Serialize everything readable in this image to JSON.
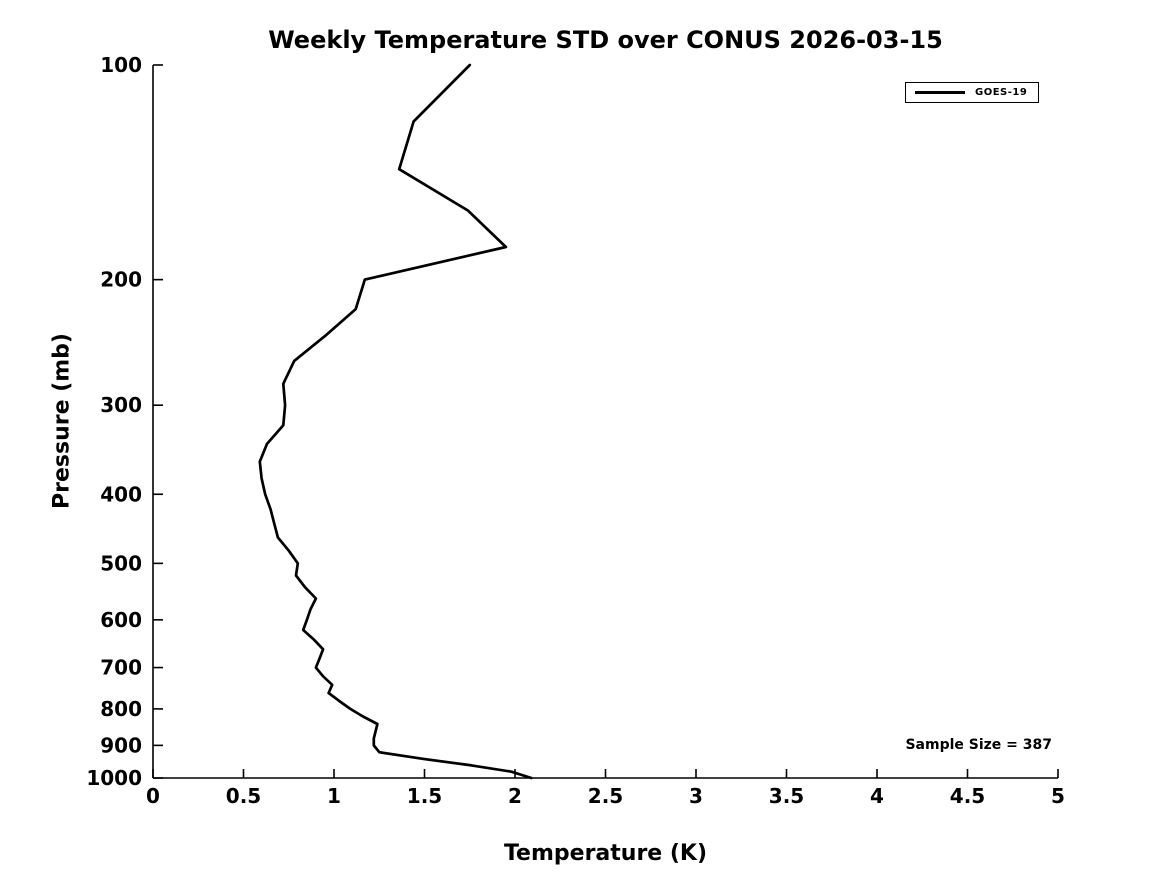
{
  "figure": {
    "title": "Weekly Temperature STD over CONUS 2026-03-15",
    "x_axis_label": "Temperature (K)",
    "y_axis_label": "Pressure (mb)",
    "annotation": "Sample Size = 387",
    "legend": {
      "label": "GOES-19"
    }
  },
  "chart_data": {
    "type": "line",
    "title": "Weekly Temperature STD over CONUS 2026-03-15",
    "xlabel": "Temperature (K)",
    "ylabel": "Pressure (mb)",
    "xlim": [
      0,
      5
    ],
    "ylim": [
      100,
      1000
    ],
    "y_scale": "log",
    "y_axis_inverted": true,
    "grid": false,
    "legend_position": "upper right",
    "line_color": "#000000",
    "sample_size": 387,
    "x_ticks": [
      {
        "value": 0,
        "label": "0"
      },
      {
        "value": 0.5,
        "label": "0.5"
      },
      {
        "value": 1,
        "label": "1"
      },
      {
        "value": 1.5,
        "label": "1.5"
      },
      {
        "value": 2,
        "label": "2"
      },
      {
        "value": 2.5,
        "label": "2.5"
      },
      {
        "value": 3,
        "label": "3"
      },
      {
        "value": 3.5,
        "label": "3.5"
      },
      {
        "value": 4,
        "label": "4"
      },
      {
        "value": 4.5,
        "label": "4.5"
      },
      {
        "value": 5,
        "label": "5"
      }
    ],
    "y_ticks": [
      {
        "value": 100,
        "label": "100"
      },
      {
        "value": 200,
        "label": "200"
      },
      {
        "value": 300,
        "label": "300"
      },
      {
        "value": 400,
        "label": "400"
      },
      {
        "value": 500,
        "label": "500"
      },
      {
        "value": 600,
        "label": "600"
      },
      {
        "value": 700,
        "label": "700"
      },
      {
        "value": 800,
        "label": "800"
      },
      {
        "value": 900,
        "label": "900"
      },
      {
        "value": 1000,
        "label": "1000"
      }
    ],
    "series": [
      {
        "name": "GOES-19",
        "color": "#000000",
        "pressure_mb": [
          100,
          120,
          140,
          160,
          180,
          200,
          220,
          240,
          260,
          280,
          300,
          320,
          340,
          360,
          380,
          400,
          420,
          440,
          460,
          480,
          500,
          520,
          540,
          560,
          580,
          600,
          620,
          640,
          660,
          680,
          700,
          720,
          740,
          760,
          780,
          800,
          820,
          840,
          860,
          880,
          900,
          920,
          940,
          960,
          980,
          1000
        ],
        "std_k": [
          1.75,
          1.44,
          1.36,
          1.74,
          1.95,
          1.17,
          1.12,
          0.95,
          0.78,
          0.72,
          0.73,
          0.72,
          0.63,
          0.59,
          0.6,
          0.62,
          0.65,
          0.67,
          0.69,
          0.75,
          0.8,
          0.79,
          0.84,
          0.9,
          0.87,
          0.85,
          0.83,
          0.89,
          0.94,
          0.92,
          0.9,
          0.94,
          0.99,
          0.97,
          1.03,
          1.09,
          1.16,
          1.24,
          1.23,
          1.22,
          1.22,
          1.25,
          1.49,
          1.76,
          1.98,
          2.09
        ]
      }
    ]
  }
}
